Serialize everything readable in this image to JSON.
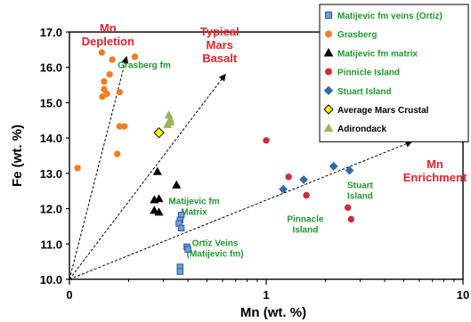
{
  "chart_data": {
    "type": "scatter",
    "x_scale": "log",
    "xlim": [
      0.1,
      10
    ],
    "ylim": [
      10.0,
      17.0
    ],
    "xlabel": "Mn (wt. %)",
    "ylabel": "Fe (wt. %)",
    "x_ticks": [
      {
        "value": 0.1,
        "label": "0"
      },
      {
        "value": 1,
        "label": "1"
      },
      {
        "value": 10,
        "label": "10"
      }
    ],
    "y_ticks": [
      {
        "value": 10.0,
        "label": "10.0"
      },
      {
        "value": 11.0,
        "label": "11.0"
      },
      {
        "value": 12.0,
        "label": "12.0"
      },
      {
        "value": 13.0,
        "label": "13.0"
      },
      {
        "value": 14.0,
        "label": "14.0"
      },
      {
        "value": 15.0,
        "label": "15.0"
      },
      {
        "value": 16.0,
        "label": "16.0"
      },
      {
        "value": 17.0,
        "label": "17.0"
      }
    ],
    "grid": false,
    "legend_position": "top-right",
    "series": [
      {
        "name": "Matijevic fm veins (Ortiz)",
        "marker": "square",
        "color": "#6fa0dc",
        "stroke": "#2f5597",
        "points": [
          {
            "x": 0.37,
            "y": 11.82
          },
          {
            "x": 0.365,
            "y": 11.68
          },
          {
            "x": 0.36,
            "y": 11.58
          },
          {
            "x": 0.37,
            "y": 11.45
          },
          {
            "x": 0.395,
            "y": 10.92
          },
          {
            "x": 0.4,
            "y": 10.85
          },
          {
            "x": 0.365,
            "y": 10.35
          },
          {
            "x": 0.365,
            "y": 10.22
          }
        ]
      },
      {
        "name": "Grasberg",
        "marker": "circle",
        "color": "#f07f22",
        "stroke": "#f07f22",
        "points": [
          {
            "x": 0.11,
            "y": 13.15
          },
          {
            "x": 0.146,
            "y": 16.42
          },
          {
            "x": 0.15,
            "y": 15.6
          },
          {
            "x": 0.16,
            "y": 15.8
          },
          {
            "x": 0.15,
            "y": 15.38
          },
          {
            "x": 0.155,
            "y": 15.25
          },
          {
            "x": 0.147,
            "y": 15.17
          },
          {
            "x": 0.165,
            "y": 16.22
          },
          {
            "x": 0.18,
            "y": 15.3
          },
          {
            "x": 0.18,
            "y": 14.33
          },
          {
            "x": 0.19,
            "y": 14.33
          },
          {
            "x": 0.175,
            "y": 13.55
          },
          {
            "x": 0.215,
            "y": 16.3
          }
        ]
      },
      {
        "name": "Matijevic fm matrix",
        "marker": "triangle",
        "color": "#000000",
        "stroke": "#000000",
        "points": [
          {
            "x": 0.28,
            "y": 13.05
          },
          {
            "x": 0.35,
            "y": 12.67
          },
          {
            "x": 0.27,
            "y": 12.25
          },
          {
            "x": 0.285,
            "y": 12.28
          },
          {
            "x": 0.27,
            "y": 11.95
          },
          {
            "x": 0.285,
            "y": 11.9
          }
        ]
      },
      {
        "name": "Pinnicle Island",
        "marker": "circle",
        "color": "#d12a3c",
        "stroke": "#d12a3c",
        "points": [
          {
            "x": 1.0,
            "y": 13.93
          },
          {
            "x": 1.3,
            "y": 12.9
          },
          {
            "x": 1.6,
            "y": 12.38
          },
          {
            "x": 2.6,
            "y": 12.03
          },
          {
            "x": 2.7,
            "y": 11.7
          }
        ]
      },
      {
        "name": "Stuart Island",
        "marker": "diamond",
        "color": "#2f6aa8",
        "stroke": "#2f6aa8",
        "points": [
          {
            "x": 1.22,
            "y": 12.55
          },
          {
            "x": 1.55,
            "y": 12.82
          },
          {
            "x": 2.2,
            "y": 13.2
          },
          {
            "x": 2.65,
            "y": 13.08
          }
        ]
      },
      {
        "name": "Average Mars Crustal",
        "marker": "diamond",
        "color": "#ffff00",
        "stroke": "#000000",
        "points": [
          {
            "x": 0.285,
            "y": 14.15
          }
        ]
      },
      {
        "name": "Adirondack",
        "marker": "triangle",
        "color": "#9ab55a",
        "stroke": "#9ab55a",
        "points": [
          {
            "x": 0.32,
            "y": 14.65
          },
          {
            "x": 0.325,
            "y": 14.52
          },
          {
            "x": 0.315,
            "y": 14.38
          },
          {
            "x": 0.325,
            "y": 14.45
          }
        ]
      }
    ],
    "arrows": [
      {
        "to": {
          "x": 0.195,
          "y": 16.3
        }
      },
      {
        "to": {
          "x": 0.62,
          "y": 15.8
        }
      },
      {
        "to": {
          "x": 5.5,
          "y": 13.9
        }
      }
    ],
    "annotations": [
      {
        "name": "mn-depletion",
        "lines": [
          "Mn",
          "Depletion"
        ],
        "color": "red",
        "at": {
          "x": 0.157,
          "y": 17.0
        }
      },
      {
        "name": "typical-mars-basalt",
        "lines": [
          "Typical",
          "Mars",
          "Basalt"
        ],
        "color": "red",
        "at": {
          "x": 0.58,
          "y": 16.9
        }
      },
      {
        "name": "mn-enrichment",
        "lines": [
          "Mn",
          "Enrichment"
        ],
        "color": "red",
        "at": {
          "x": 7.2,
          "y": 13.15
        }
      },
      {
        "name": "grasberg-fm",
        "lines": [
          "Grasberg fm"
        ],
        "color": "green",
        "at": {
          "x": 0.24,
          "y": 15.98
        }
      },
      {
        "name": "matijevic-fm-matrix",
        "lines": [
          "Matijevic fm",
          "Matrix"
        ],
        "color": "green",
        "at": {
          "x": 0.43,
          "y": 12.13
        }
      },
      {
        "name": "ortiz-veins",
        "lines": [
          "Ortiz Veins",
          "(Matijevic fm)"
        ],
        "color": "green",
        "at": {
          "x": 0.55,
          "y": 10.95
        }
      },
      {
        "name": "stuart-island",
        "lines": [
          "Stuart",
          "Island"
        ],
        "color": "green",
        "at": {
          "x": 3.0,
          "y": 12.58
        }
      },
      {
        "name": "pinnacle-island",
        "lines": [
          "Pinnacle",
          "Island"
        ],
        "color": "green",
        "at": {
          "x": 1.58,
          "y": 11.63
        }
      }
    ]
  }
}
